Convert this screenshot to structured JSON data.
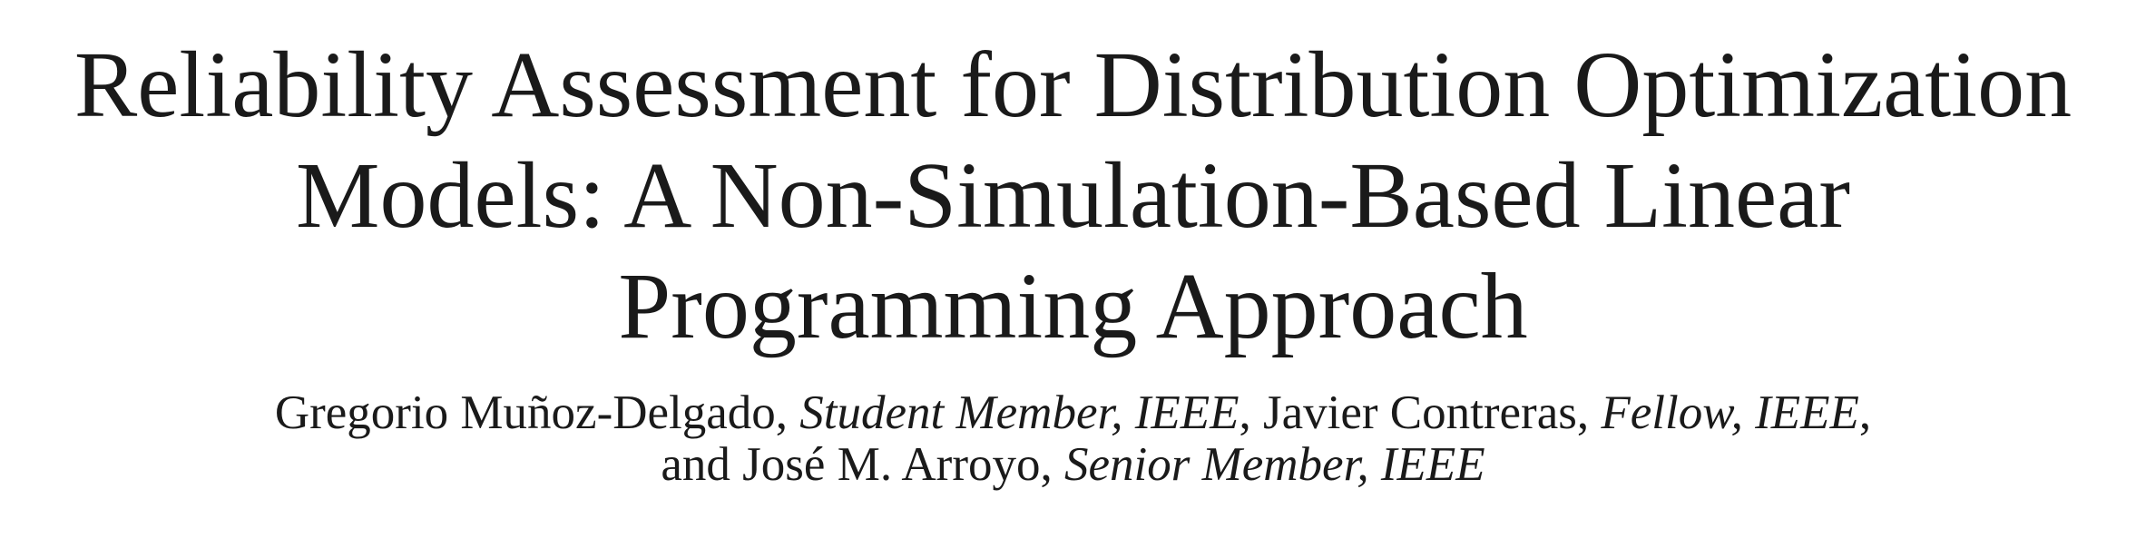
{
  "page": {
    "background_color": "#ffffff",
    "text_color": "#1a1a1a"
  },
  "title": {
    "lines": [
      "Reliability Assessment for Distribution Optimization",
      "Models: A Non-Simulation-Based Linear",
      "Programming Approach"
    ]
  },
  "authors": {
    "line1": [
      {
        "text": "Gregorio Muñoz-Delgado, ",
        "style": "roman"
      },
      {
        "text": "Student Member, IEEE",
        "style": "italic"
      },
      {
        "text": ", Javier Contreras, ",
        "style": "roman"
      },
      {
        "text": "Fellow, IEEE",
        "style": "italic"
      },
      {
        "text": ",",
        "style": "roman"
      }
    ],
    "line2": [
      {
        "text": "and José M. Arroyo, ",
        "style": "roman"
      },
      {
        "text": "Senior Member, IEEE",
        "style": "italic"
      }
    ]
  }
}
